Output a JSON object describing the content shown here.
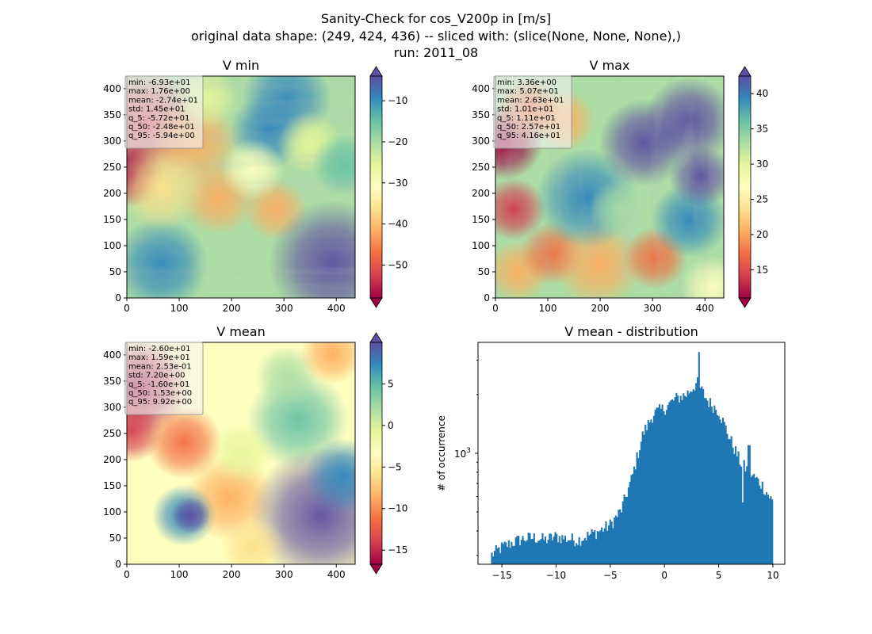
{
  "suptitle": {
    "line1": "Sanity-Check for cos_V200p in [m/s]",
    "line2": "original data shape: (249, 424, 436) -- sliced with: (slice(None, None, None),)",
    "line3": "run: 2011_08"
  },
  "colors": {
    "spectral": [
      "#9e0142",
      "#d53e4f",
      "#f46d43",
      "#fdae61",
      "#fee08b",
      "#ffffbf",
      "#e6f598",
      "#abdda4",
      "#66c2a5",
      "#3288bd",
      "#5e4fa2"
    ],
    "hist_bar": "#1f77b4"
  },
  "chart_data": [
    {
      "type": "heatmap",
      "title": "V min",
      "xlim": [
        0,
        436
      ],
      "ylim": [
        0,
        424
      ],
      "xticks": [
        "0",
        "100",
        "200",
        "300",
        "400"
      ],
      "yticks": [
        "0",
        "50",
        "100",
        "150",
        "200",
        "250",
        "300",
        "350",
        "400"
      ],
      "colorbar": {
        "vmin": -58,
        "vmax": -4,
        "ticks": [
          "−50",
          "−40",
          "−30",
          "−20",
          "−10"
        ],
        "tick_values": [
          -50,
          -40,
          -30,
          -20,
          -10
        ]
      },
      "stats": [
        "min: -6.93e+01",
        "max: 1.76e+00",
        "mean: -2.74e+01",
        "std: 1.45e+01",
        "q_5: -5.72e+01",
        "q_50: -2.48e+01",
        "q_95: -5.94e+00"
      ]
    },
    {
      "type": "heatmap",
      "title": "V max",
      "xlim": [
        0,
        436
      ],
      "ylim": [
        0,
        424
      ],
      "xticks": [
        "0",
        "100",
        "200",
        "300",
        "400"
      ],
      "yticks": [
        "0",
        "50",
        "100",
        "150",
        "200",
        "250",
        "300",
        "350",
        "400"
      ],
      "colorbar": {
        "vmin": 11,
        "vmax": 42.5,
        "ticks": [
          "15",
          "20",
          "25",
          "30",
          "35",
          "40"
        ],
        "tick_values": [
          15,
          20,
          25,
          30,
          35,
          40
        ]
      },
      "stats": [
        "min: 3.36e+00",
        "max: 5.07e+01",
        "mean: 2.63e+01",
        "std: 1.01e+01",
        "q_5: 1.11e+01",
        "q_50: 2.57e+01",
        "q_95: 4.16e+01"
      ]
    },
    {
      "type": "heatmap",
      "title": "V mean",
      "xlim": [
        0,
        436
      ],
      "ylim": [
        0,
        424
      ],
      "xticks": [
        "0",
        "100",
        "200",
        "300",
        "400"
      ],
      "yticks": [
        "0",
        "50",
        "100",
        "150",
        "200",
        "250",
        "300",
        "350",
        "400"
      ],
      "colorbar": {
        "vmin": -16.7,
        "vmax": 10,
        "ticks": [
          "−15",
          "−10",
          "−5",
          "0",
          "5"
        ],
        "tick_values": [
          -15,
          -10,
          -5,
          0,
          5
        ]
      },
      "stats": [
        "min: -2.60e+01",
        "max: 1.59e+01",
        "mean: 2.53e-01",
        "std: 7.20e+00",
        "q_5: -1.60e+01",
        "q_50: 1.53e+00",
        "q_95: 9.92e+00"
      ]
    },
    {
      "type": "bar",
      "title": "V mean - distribution",
      "ylabel": "# of occurrence",
      "yscale": "log",
      "xlim": [
        -17.2,
        11.1
      ],
      "ylim": [
        270,
        3700
      ],
      "xticks": [
        "−15",
        "−10",
        "−5",
        "0",
        "5",
        "10"
      ],
      "xtick_values": [
        -15,
        -10,
        -5,
        0,
        5,
        10
      ],
      "ytick_label": "10",
      "ytick_exp": "3",
      "ytick_value": 1000,
      "bin_range": [
        -16,
        10
      ],
      "keypoints": [
        [
          -16,
          300
        ],
        [
          -15,
          330
        ],
        [
          -14,
          350
        ],
        [
          -13,
          365
        ],
        [
          -12,
          370
        ],
        [
          -11,
          360
        ],
        [
          -10,
          375
        ],
        [
          -9,
          365
        ],
        [
          -8,
          360
        ],
        [
          -7,
          380
        ],
        [
          -6,
          400
        ],
        [
          -5,
          430
        ],
        [
          -4,
          510
        ],
        [
          -3,
          750
        ],
        [
          -2,
          1250
        ],
        [
          -1,
          1600
        ],
        [
          0,
          1700
        ],
        [
          1,
          1900
        ],
        [
          2,
          2000
        ],
        [
          3,
          2300
        ],
        [
          4,
          1850
        ],
        [
          5,
          1650
        ],
        [
          6,
          1200
        ],
        [
          7,
          900
        ],
        [
          8,
          780
        ],
        [
          9,
          690
        ],
        [
          10,
          560
        ]
      ]
    }
  ]
}
